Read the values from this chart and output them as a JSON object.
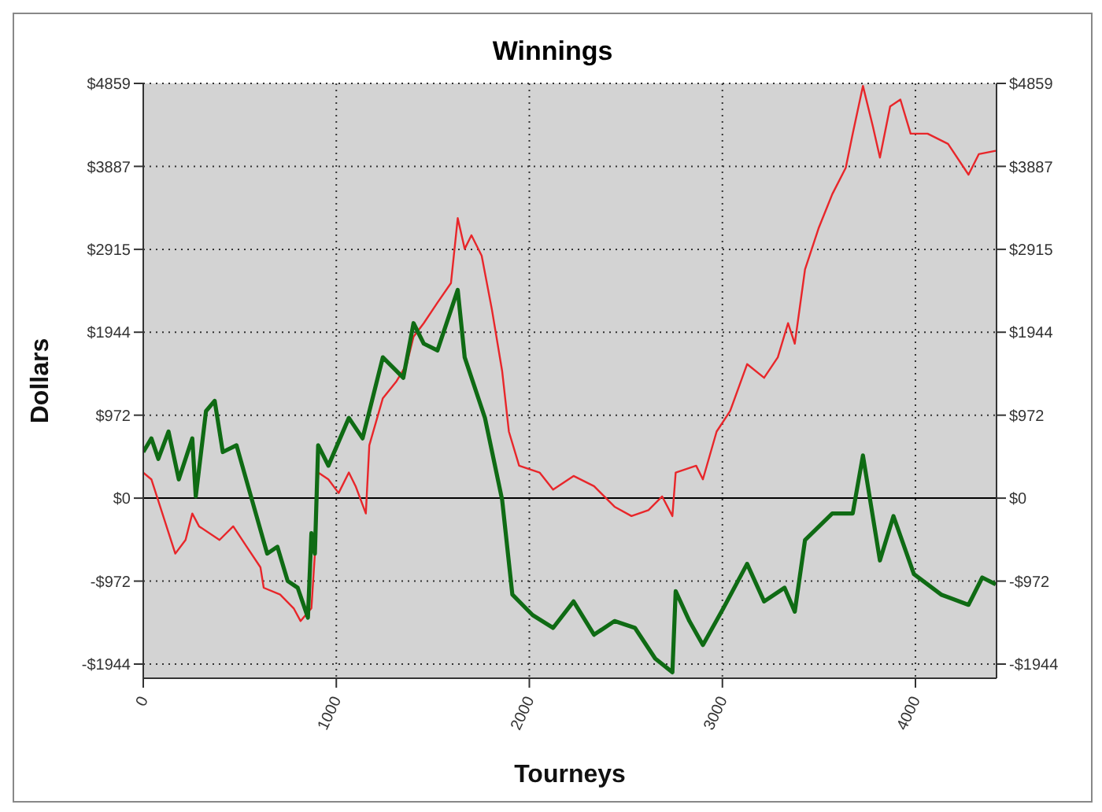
{
  "chart_data": {
    "type": "line",
    "title": "Winnings",
    "xlabel": "Tourneys",
    "ylabel": "Dollars",
    "xlim": [
      0,
      4420
    ],
    "xticks": [
      0,
      1000,
      2000,
      3000,
      4000
    ],
    "ylim": [
      -2110,
      4859
    ],
    "yticks": [
      {
        "value": 4859,
        "label": "$4859"
      },
      {
        "value": 3887,
        "label": "$3887"
      },
      {
        "value": 2915,
        "label": "$2915"
      },
      {
        "value": 1944,
        "label": "$1944"
      },
      {
        "value": 972,
        "label": "$972"
      },
      {
        "value": 0,
        "label": "$0"
      },
      {
        "value": -972,
        "label": "-$972"
      },
      {
        "value": -1944,
        "label": "-$1944"
      }
    ],
    "y2lim": [
      -2110,
      4859
    ],
    "y2ticks": [
      {
        "value": 4859,
        "label": "$4859"
      },
      {
        "value": 3887,
        "label": "$3887"
      },
      {
        "value": 2915,
        "label": "$2915"
      },
      {
        "value": 1944,
        "label": "$1944"
      },
      {
        "value": 972,
        "label": "$972"
      },
      {
        "value": 0,
        "label": "$0"
      },
      {
        "value": -972,
        "label": "-$972"
      },
      {
        "value": -1944,
        "label": "-$1944"
      }
    ],
    "grid": true,
    "legend": false,
    "marker": "none",
    "line_style": "solid",
    "ref_lines": [
      {
        "axis": "y",
        "value": 0,
        "color": "#000000",
        "line_style": "solid"
      }
    ],
    "series": [
      {
        "color": "#e8262a",
        "x": [
          0,
          42,
          166,
          219,
          254,
          289,
          395,
          466,
          536,
          607,
          624,
          709,
          779,
          815,
          871,
          889,
          906,
          959,
          1012,
          1065,
          1100,
          1153,
          1171,
          1241,
          1312,
          1365,
          1400,
          1453,
          1524,
          1594,
          1629,
          1665,
          1700,
          1753,
          1806,
          1859,
          1894,
          1947,
          2053,
          2123,
          2229,
          2335,
          2441,
          2529,
          2617,
          2688,
          2741,
          2758,
          2864,
          2899,
          2970,
          3040,
          3128,
          3216,
          3287,
          3340,
          3375,
          3428,
          3498,
          3569,
          3639,
          3675,
          3728,
          3780,
          3816,
          3869,
          3922,
          3975,
          4063,
          4169,
          4275,
          4328,
          4416
        ],
        "values": [
          300,
          220,
          -650,
          -490,
          -180,
          -330,
          -490,
          -330,
          -570,
          -810,
          -1050,
          -1130,
          -1290,
          -1440,
          -1290,
          -650,
          300,
          220,
          60,
          300,
          140,
          -180,
          620,
          1170,
          1370,
          1570,
          1890,
          2050,
          2290,
          2520,
          3280,
          2920,
          3080,
          2840,
          2210,
          1490,
          780,
          380,
          300,
          100,
          260,
          140,
          -100,
          -210,
          -140,
          20,
          -210,
          300,
          380,
          220,
          780,
          1020,
          1570,
          1410,
          1650,
          2050,
          1810,
          2680,
          3160,
          3560,
          3870,
          4270,
          4830,
          4350,
          3990,
          4590,
          4670,
          4270,
          4270,
          4150,
          3790,
          4030,
          4070
        ]
      },
      {
        "color": "#0f6b14",
        "x": [
          0,
          42,
          78,
          131,
          184,
          254,
          272,
          325,
          370,
          412,
          483,
          553,
          642,
          695,
          748,
          800,
          853,
          871,
          889,
          906,
          959,
          1065,
          1136,
          1241,
          1347,
          1400,
          1453,
          1524,
          1629,
          1665,
          1770,
          1859,
          1912,
          2017,
          2123,
          2229,
          2335,
          2441,
          2547,
          2652,
          2741,
          2758,
          2829,
          2899,
          3005,
          3128,
          3216,
          3322,
          3375,
          3428,
          3569,
          3675,
          3728,
          3816,
          3886,
          3992,
          4133,
          4275,
          4346,
          4416
        ],
        "values": [
          540,
          700,
          460,
          780,
          220,
          700,
          20,
          1020,
          1140,
          540,
          620,
          60,
          -650,
          -570,
          -970,
          -1050,
          -1400,
          -410,
          -650,
          620,
          380,
          940,
          700,
          1650,
          1410,
          2050,
          1810,
          1730,
          2440,
          1650,
          940,
          -20,
          -1130,
          -1370,
          -1520,
          -1210,
          -1600,
          -1440,
          -1520,
          -1880,
          -2040,
          -1090,
          -1440,
          -1720,
          -1290,
          -770,
          -1210,
          -1050,
          -1330,
          -490,
          -180,
          -180,
          500,
          -730,
          -210,
          -890,
          -1130,
          -1250,
          -930,
          -1010
        ]
      }
    ]
  }
}
